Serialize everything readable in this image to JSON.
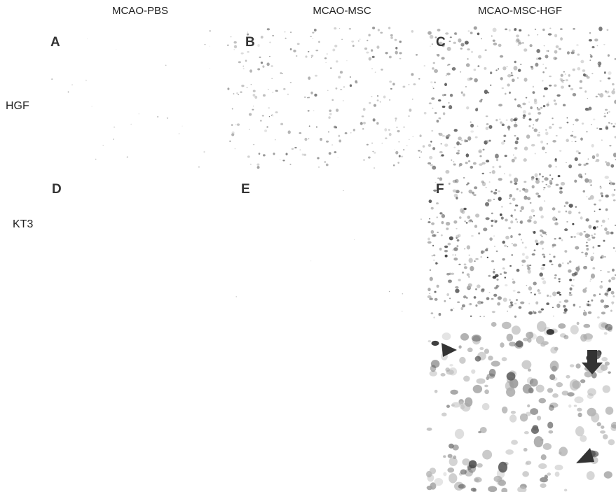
{
  "columns": [
    "MCAO-PBS",
    "MCAO-MSC",
    "MCAO-MSC-HGF"
  ],
  "rows": [
    "HGF",
    "KT3"
  ],
  "panels": [
    "A",
    "B",
    "C",
    "D",
    "E",
    "F"
  ]
}
